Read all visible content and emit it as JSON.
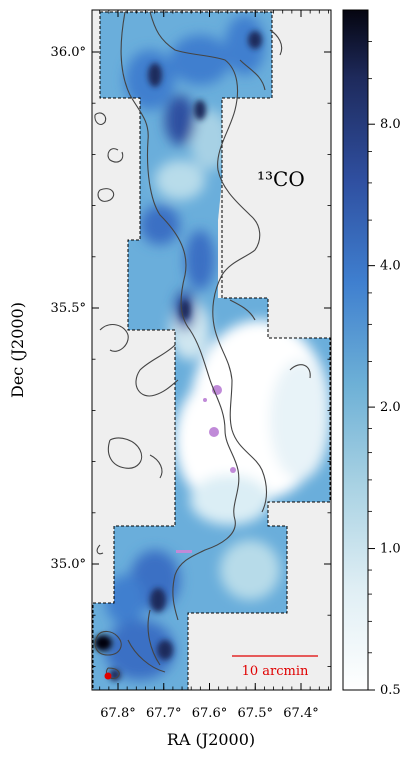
{
  "chart_data": {
    "type": "heatmap",
    "title": "",
    "xlabel": "RA (J2000)",
    "ylabel": "Dec (J2000)",
    "x_ticks": [
      "67.8°",
      "67.7°",
      "67.6°",
      "67.5°",
      "67.4°"
    ],
    "y_ticks": [
      "35.0°",
      "35.5°",
      "36.0°"
    ],
    "x_tick_values": [
      67.8,
      67.7,
      67.6,
      67.5,
      67.4
    ],
    "y_tick_values": [
      35.0,
      35.5,
      36.0
    ],
    "xlim": [
      67.86,
      67.33
    ],
    "ylim": [
      34.77,
      36.13
    ],
    "colorbar": {
      "scale": "log",
      "range": [
        0.5,
        14
      ],
      "ticks": [
        0.5,
        1.0,
        2.0,
        4.0,
        8.0
      ],
      "tick_labels": [
        "0.5",
        "1.0",
        "2.0",
        "4.0",
        "8.0"
      ],
      "colors": [
        "#ffffff",
        "#dfeef4",
        "#a9d2e3",
        "#6db0d6",
        "#3f7fcf",
        "#2f4fa0",
        "#1e2a5c",
        "#050510"
      ]
    },
    "annotation": "¹³CO",
    "scale_bar": "10 arcmin",
    "colors": {
      "contour": "#444444",
      "dashed_border": "#000000",
      "outside": "#efefef",
      "no_data": "#c8c8c8",
      "scale_bar": "#e00000",
      "masked": "#c08ad8"
    }
  }
}
